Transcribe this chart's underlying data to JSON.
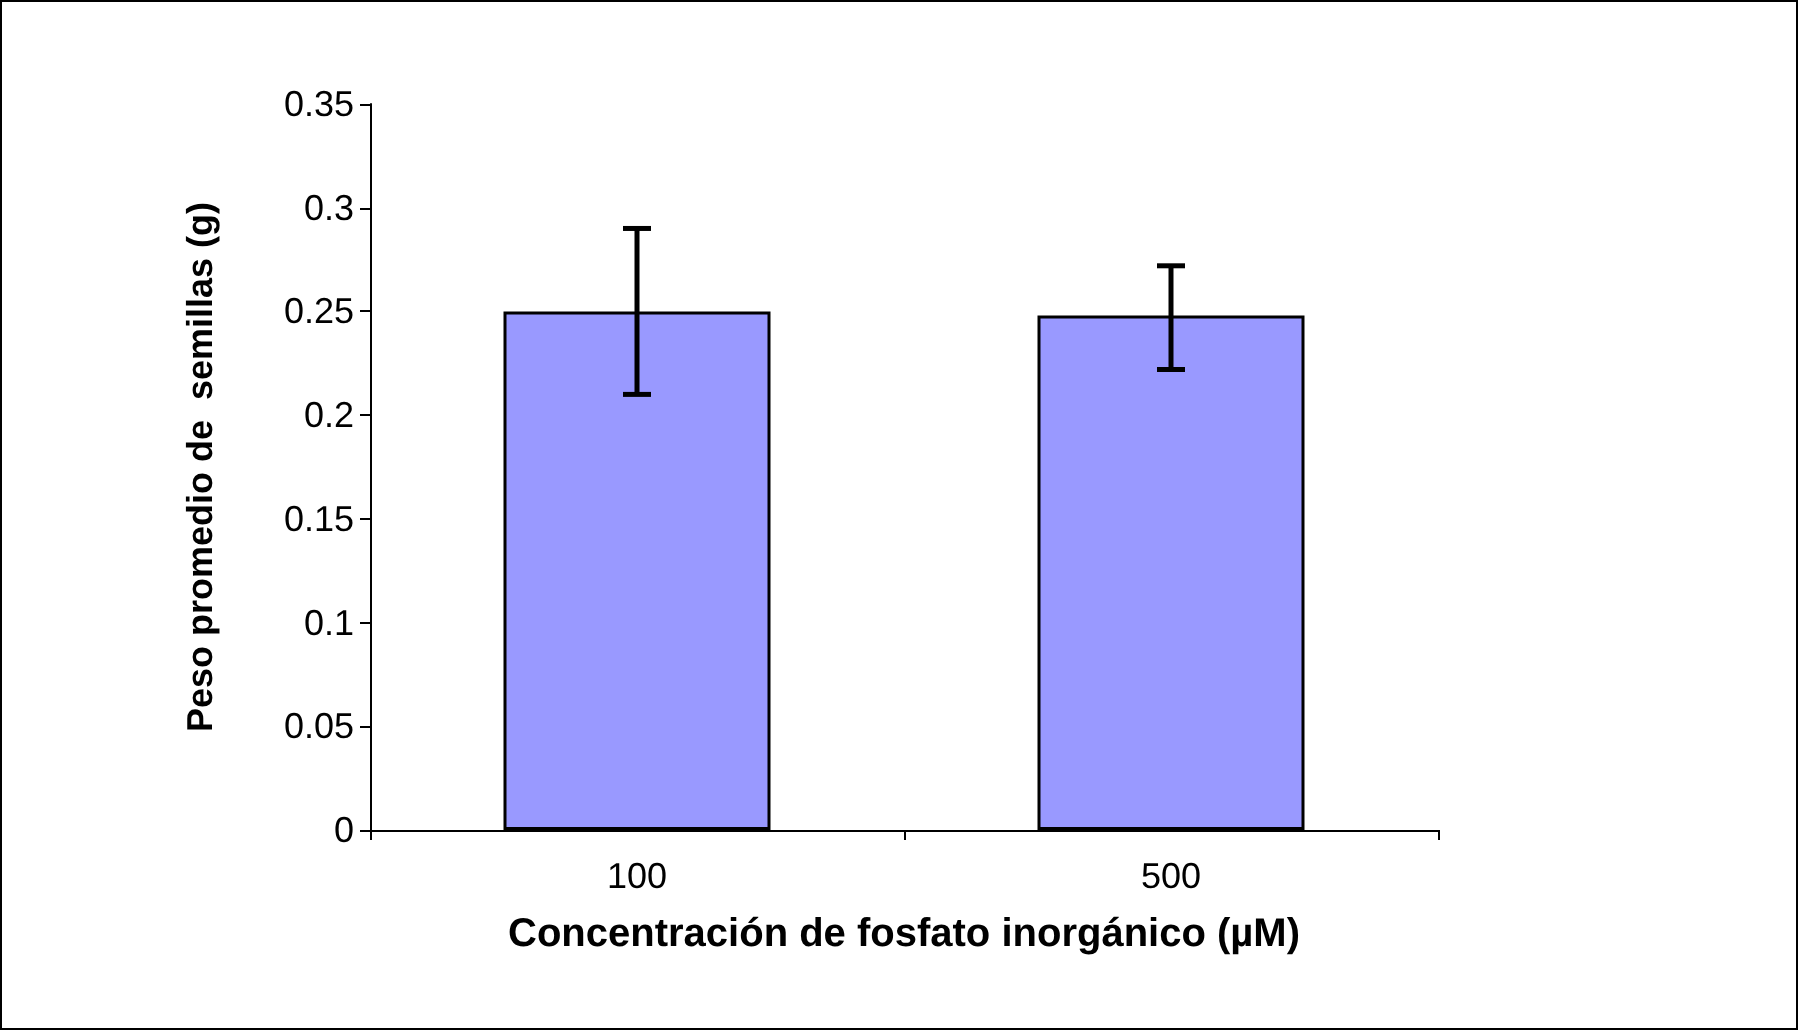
{
  "chart_data": {
    "type": "bar",
    "xlabel": "Concentración de fosfato inorgánico (µM)",
    "ylabel": "Peso promedio de  semillas (g)",
    "categories": [
      "100",
      "500"
    ],
    "values": [
      0.25,
      0.248
    ],
    "errors": [
      0.04,
      [
        0.222,
        0.272
      ]
    ],
    "color": "#9999ff",
    "ylim": [
      0,
      0.35
    ],
    "yticks": [
      0,
      0.05,
      0.1,
      0.15,
      0.2,
      0.25,
      0.3,
      0.35
    ],
    "grid": false
  }
}
